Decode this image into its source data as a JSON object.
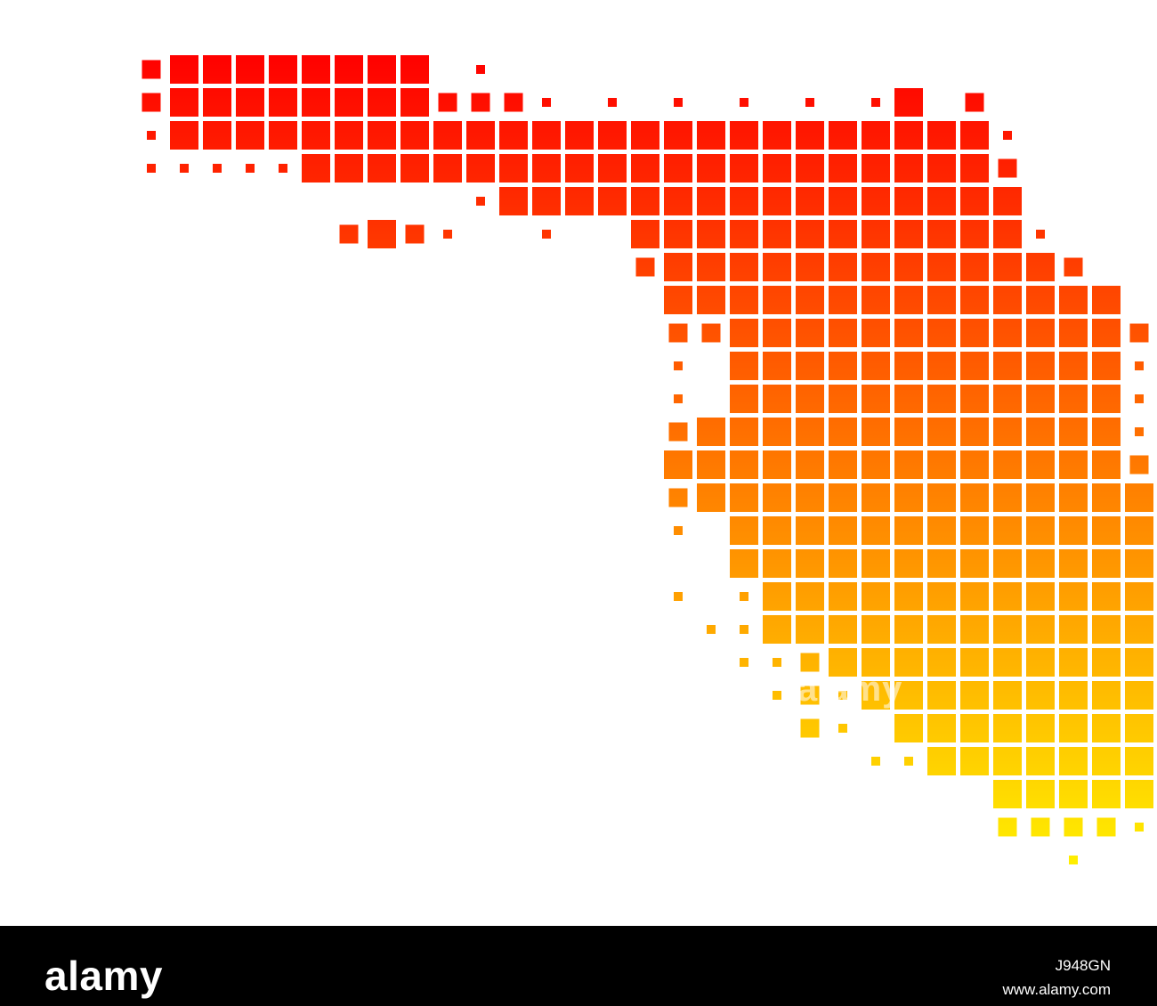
{
  "map": {
    "region": "Florida",
    "style": "dot-matrix squares",
    "gradient": {
      "top": "#ff0000",
      "bottom": "#fff000"
    }
  },
  "watermark": {
    "text": "alamy"
  },
  "footer": {
    "logo": "alamy",
    "image_id": "J948GN",
    "url": "www.alamy.com",
    "background": "#000000",
    "text_color": "#ffffff"
  }
}
